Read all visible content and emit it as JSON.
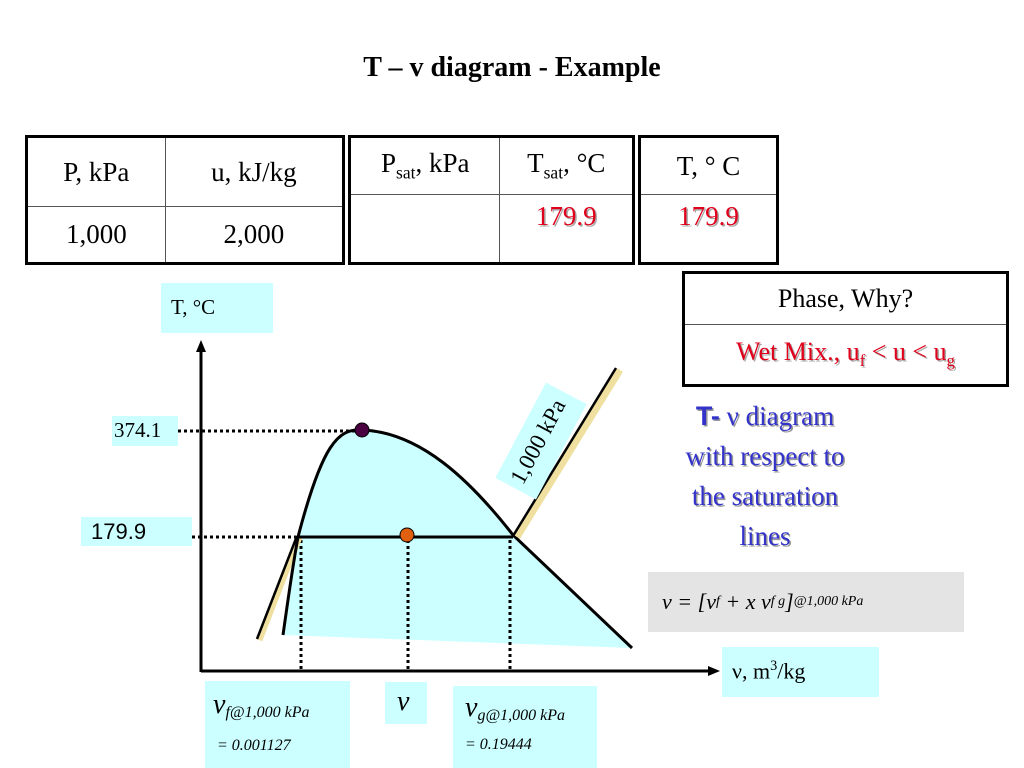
{
  "title": "T – v diagram - Example",
  "table1": {
    "headers": [
      "P, kPa",
      "u, kJ/kg"
    ],
    "values": [
      "1,000",
      "2,000"
    ]
  },
  "table2": {
    "header_psat_main": "P",
    "header_psat_sub": "sat",
    "header_psat_unit": ", kPa",
    "header_tsat_main": "T",
    "header_tsat_sub": "sat",
    "header_tsat_unit": ", °C",
    "psat_value": "",
    "tsat_value": "179.9"
  },
  "table3": {
    "header": "T, ° C",
    "value": "179.9"
  },
  "phase_table": {
    "header": "Phase, Why?",
    "value_prefix": "Wet Mix., u",
    "value_sub1": "f",
    "value_mid": " < u < u",
    "value_sub2": "g"
  },
  "diagram": {
    "y_axis_label": "T, °C",
    "x_axis_label_main": "ν, m",
    "x_axis_label_sup": "3",
    "x_axis_label_unit": "/kg",
    "critical_temp_label": "374.1",
    "sat_temp_label": "179.9",
    "isobar_label": "1,000 kPa",
    "vf_label_main": "ν",
    "vf_label_sub": "f@1,000 kPa",
    "vf_value": "= 0.001127",
    "v_label": "ν",
    "vg_label_main": "ν",
    "vg_label_sub": "g@1,000 kPa",
    "vg_value": "= 0.19444",
    "colors": {
      "dome_fill": "#ccffff",
      "critical_point": "#4a0040",
      "state_point": "#e06010",
      "isobar_accent": "#f0e0a0"
    }
  },
  "caption": {
    "line1_t": "T-",
    "line1_rest": " ν diagram",
    "line2": "with respect to",
    "line3": "the saturation",
    "line4": "lines"
  },
  "formula": {
    "lhs": "ν",
    "eq": " = [",
    "vf": "ν",
    "vf_sub": "f",
    "plus": " + x ",
    "vfg": "ν",
    "vfg_sub": "f g",
    "close": "]",
    "cond": "@1,000 kPa"
  }
}
